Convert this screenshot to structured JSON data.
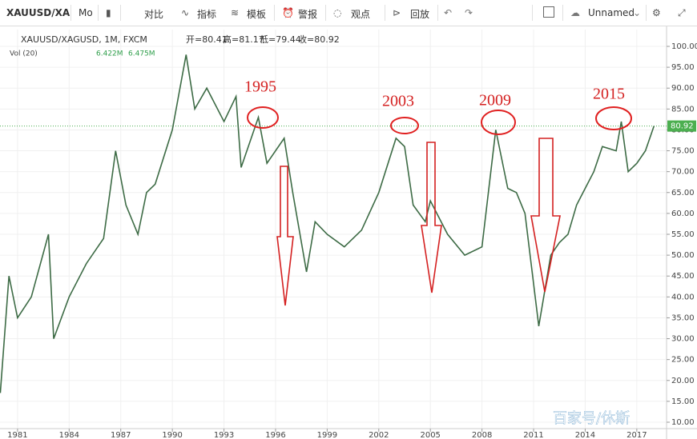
{
  "toolbar": {
    "symbol": "XAUUSD/XA",
    "interval": "Mo",
    "compare": "对比",
    "indicators": "指标",
    "templates": "模板",
    "alert": "警报",
    "ideas": "观点",
    "replay": "回放",
    "layout": "Unnamed"
  },
  "chart_data": {
    "type": "line",
    "title": "XAUUSD/XAGUSD, 1M, FXCM",
    "ohlc": [
      "开=80.41",
      "高=81.17",
      "低=79.44",
      "收=80.92"
    ],
    "volume_title": "Vol (20)",
    "volume_readings": [
      "6.422M",
      "6.475M"
    ],
    "annotations": [
      "1995",
      "2003",
      "2009",
      "2015"
    ],
    "watermark": "百家号/休斯",
    "last_price": 80.92,
    "last_price_color": "#4caf50",
    "x": [
      1980.0,
      1980.5,
      1981,
      1981.8,
      1982.8,
      1983.1,
      1984,
      1985,
      1986,
      1986.7,
      1987.3,
      1988,
      1988.5,
      1989,
      1990,
      1990.8,
      1991.3,
      1992,
      1993,
      1993.7,
      1994,
      1995,
      1995.5,
      1996.5,
      1997,
      1997.8,
      1998.3,
      1999,
      2000,
      2001,
      2002,
      2003,
      2003.5,
      2004,
      2004.7,
      2005,
      2006,
      2007,
      2008,
      2008.8,
      2009.5,
      2010,
      2010.5,
      2011.3,
      2012,
      2012.5,
      2013,
      2013.5,
      2014,
      2014.5,
      2015,
      2015.8,
      2016.1,
      2016.5,
      2017,
      2017.5,
      2018
    ],
    "values": [
      17,
      45,
      35,
      40,
      55,
      30,
      40,
      48,
      54,
      75,
      62,
      55,
      65,
      67,
      80,
      98,
      85,
      90,
      82,
      88,
      71,
      83,
      72,
      78,
      65,
      46,
      58,
      55,
      52,
      56,
      65,
      78,
      76,
      62,
      58,
      63,
      55,
      50,
      52,
      80,
      66,
      65,
      60,
      33,
      50,
      53,
      55,
      62,
      66,
      70,
      76,
      75,
      82,
      70,
      72,
      75,
      80.92
    ],
    "color": "#3d6b45",
    "xlim": [
      1979.98,
      2018.73
    ],
    "xticks": [
      1981,
      1984,
      1987,
      1990,
      1993,
      1996,
      1999,
      2002,
      2005,
      2008,
      2011,
      2014,
      2017
    ],
    "ylim": [
      8.66,
      104.02
    ],
    "yticks": [
      {
        "value": 10,
        "label": "10.00"
      },
      {
        "value": 15,
        "label": "15.00"
      },
      {
        "value": 20,
        "label": "20.00"
      },
      {
        "value": 25,
        "label": "25.00"
      },
      {
        "value": 30,
        "label": "30.00"
      },
      {
        "value": 35,
        "label": "35.00"
      },
      {
        "value": 40,
        "label": "40.00"
      },
      {
        "value": 45,
        "label": "45.00"
      },
      {
        "value": 50,
        "label": "50.00"
      },
      {
        "value": 55,
        "label": "55.00"
      },
      {
        "value": 60,
        "label": "60.00"
      },
      {
        "value": 65,
        "label": "65.00"
      },
      {
        "value": 70,
        "label": "70.00"
      },
      {
        "value": 75,
        "label": "75.00"
      },
      {
        "value": 80,
        "label": "80.00"
      },
      {
        "value": 85,
        "label": "85.00"
      },
      {
        "value": 90,
        "label": "90.00"
      },
      {
        "value": 95,
        "label": "95.00"
      },
      {
        "value": 100,
        "label": "100.00"
      }
    ],
    "grid": true
  }
}
